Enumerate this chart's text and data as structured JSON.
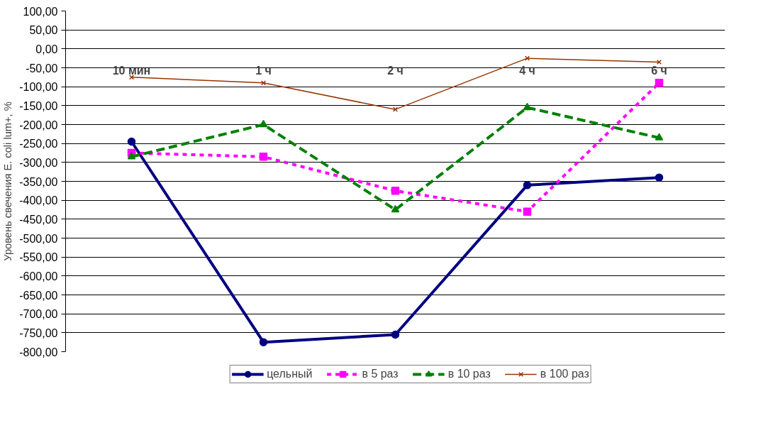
{
  "chart_data": {
    "type": "line",
    "ylabel": "Уровень свечения E. coli lum+, %",
    "categories": [
      "10 мин",
      "1 ч",
      "2 ч",
      "4 ч",
      "6 ч"
    ],
    "series": [
      {
        "name": "цельный",
        "color": "#000080",
        "marker": "circle",
        "line_style": "solid",
        "values": [
          -245,
          -775,
          -755,
          -360,
          -340
        ]
      },
      {
        "name": "в 5 раз",
        "color": "#ff00ff",
        "marker": "square",
        "line_style": "dotted",
        "values": [
          -275,
          -285,
          -375,
          -430,
          -90
        ]
      },
      {
        "name": "в 10 раз",
        "color": "#008000",
        "marker": "triangle",
        "line_style": "dashed",
        "values": [
          -285,
          -200,
          -425,
          -155,
          -235
        ]
      },
      {
        "name": "в 100 раз",
        "color": "#993300",
        "marker": "cross",
        "line_style": "solid",
        "values": [
          -75,
          -90,
          -160,
          -25,
          -35
        ]
      }
    ],
    "ylim": [
      -800,
      100
    ],
    "yticks": [
      {
        "value": 100,
        "label": "100,00"
      },
      {
        "value": 50,
        "label": "50,00"
      },
      {
        "value": 0,
        "label": "0,00"
      },
      {
        "value": -50,
        "label": "-50,00"
      },
      {
        "value": -100,
        "label": "-100,00"
      },
      {
        "value": -150,
        "label": "-150,00"
      },
      {
        "value": -200,
        "label": "-200,00"
      },
      {
        "value": -250,
        "label": "-250,00"
      },
      {
        "value": -300,
        "label": "-300,00"
      },
      {
        "value": -350,
        "label": "-350,00"
      },
      {
        "value": -400,
        "label": "-400,00"
      },
      {
        "value": -450,
        "label": "-450,00"
      },
      {
        "value": -500,
        "label": "-500,00"
      },
      {
        "value": -550,
        "label": "-550,00"
      },
      {
        "value": -600,
        "label": "-600,00"
      },
      {
        "value": -650,
        "label": "-650,00"
      },
      {
        "value": -700,
        "label": "-700,00"
      },
      {
        "value": -750,
        "label": "-750,00"
      },
      {
        "value": -800,
        "label": "-800,00"
      }
    ],
    "grid": "y",
    "legend": "bottom"
  }
}
